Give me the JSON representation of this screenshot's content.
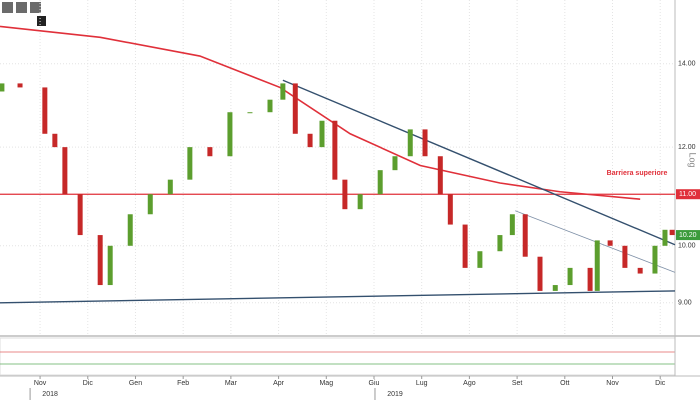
{
  "chart_data": {
    "type": "candlestick",
    "log_scale": true,
    "grid": true,
    "axis_label": "Log",
    "xlim": [
      -0.84,
      13.31
    ],
    "ylim": [
      8.48,
      15.75
    ],
    "xticks": [
      {
        "value": 0,
        "label": "Nov"
      },
      {
        "value": 1,
        "label": "Dic"
      },
      {
        "value": 2,
        "label": "Gen"
      },
      {
        "value": 3,
        "label": "Feb"
      },
      {
        "value": 4,
        "label": "Mar"
      },
      {
        "value": 5,
        "label": "Apr"
      },
      {
        "value": 6,
        "label": "Mag"
      },
      {
        "value": 7,
        "label": "Giu"
      },
      {
        "value": 8,
        "label": "Lug"
      },
      {
        "value": 9,
        "label": "Ago"
      },
      {
        "value": 10,
        "label": "Set"
      },
      {
        "value": 11,
        "label": "Ott"
      },
      {
        "value": 12,
        "label": "Nov"
      },
      {
        "value": 13,
        "label": "Dic"
      }
    ],
    "year_ticks": [
      {
        "value": 0.21,
        "label": "2018"
      },
      {
        "value": 7.44,
        "label": "2019"
      }
    ],
    "yticks": [
      {
        "value": 9,
        "label": "9.00"
      },
      {
        "value": 10,
        "label": "10.00"
      },
      {
        "value": 12,
        "label": "12.00"
      },
      {
        "value": 14,
        "label": "14.00"
      }
    ],
    "up_color": "#5c9e2e",
    "down_color": "#c62828",
    "x": [
      -0.8,
      -0.42,
      0.1,
      0.31,
      0.52,
      0.84,
      1.26,
      1.47,
      1.89,
      2.31,
      2.73,
      3.14,
      3.56,
      3.98,
      4.4,
      4.82,
      5.09,
      5.35,
      5.66,
      5.91,
      6.18,
      6.39,
      6.71,
      7.13,
      7.44,
      7.76,
      8.07,
      8.39,
      8.6,
      8.91,
      9.22,
      9.64,
      9.9,
      10.17,
      10.48,
      10.8,
      11.11,
      11.53,
      11.68,
      11.95,
      12.26,
      12.58,
      12.89,
      13.1,
      13.25
    ],
    "open": [
      13.3,
      13.5,
      13.4,
      12.3,
      12.0,
      11.0,
      10.2,
      9.3,
      10.0,
      10.6,
      11.0,
      11.3,
      12.0,
      11.8,
      12.8,
      12.8,
      13.1,
      13.5,
      12.3,
      12.0,
      12.6,
      11.3,
      10.7,
      11.0,
      11.5,
      11.8,
      12.4,
      11.8,
      11.0,
      10.4,
      9.6,
      9.9,
      10.2,
      10.6,
      9.8,
      9.2,
      9.3,
      9.6,
      9.2,
      10.1,
      10.0,
      9.6,
      9.5,
      10.0,
      10.3
    ],
    "close": [
      13.5,
      13.4,
      12.3,
      12.0,
      11.0,
      10.2,
      9.3,
      10.0,
      10.6,
      11.0,
      11.3,
      12.0,
      11.8,
      12.8,
      12.8,
      13.1,
      13.5,
      12.3,
      12.0,
      12.6,
      11.3,
      10.7,
      11.0,
      11.5,
      11.8,
      12.4,
      11.8,
      11.0,
      10.4,
      9.6,
      9.9,
      10.2,
      10.6,
      9.8,
      9.2,
      9.3,
      9.6,
      9.2,
      10.1,
      10.0,
      9.6,
      9.5,
      10.0,
      10.3,
      10.2
    ],
    "moving_average": {
      "color": "#e0303a",
      "x": [
        -0.84,
        1.26,
        3.35,
        5.03,
        6.5,
        7.97,
        9.64,
        10.9,
        12.58
      ],
      "values": [
        15.0,
        14.7,
        14.2,
        13.4,
        12.3,
        11.6,
        11.23,
        11.05,
        10.9
      ]
    },
    "trendlines": [
      {
        "color": "#34506e",
        "x": [
          5.09,
          13.31
        ],
        "values": [
          13.58,
          10.02
        ]
      },
      {
        "color": "#34506e",
        "x": [
          -0.84,
          13.31
        ],
        "values": [
          9.0,
          9.2
        ]
      },
      {
        "color": "#7d8fa6",
        "x": [
          9.96,
          13.31
        ],
        "values": [
          10.67,
          9.52
        ]
      }
    ],
    "hline": {
      "value": 11,
      "color": "#e0303a",
      "label": "Barriera superiore"
    },
    "price_badges": [
      {
        "value": 11,
        "label": "11.00",
        "color": "#e0303a"
      },
      {
        "value": 10.2,
        "label": "10.20",
        "color": "#3b9b3b"
      }
    ]
  }
}
